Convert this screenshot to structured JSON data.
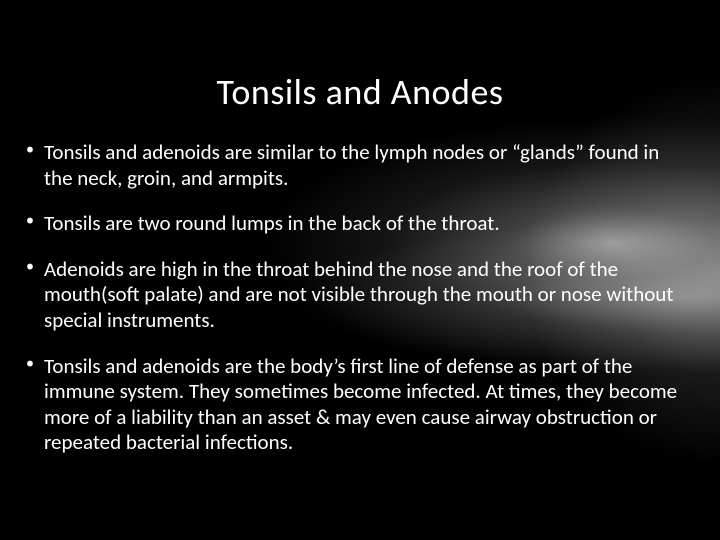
{
  "slide": {
    "title": "Tonsils and Anodes",
    "bullets": [
      "Tonsils and adenoids are similar to the lymph nodes or “glands” found in the neck, groin, and armpits.",
      "Tonsils are two round lumps in the back of the throat.",
      "Adenoids are high in the throat behind the nose and the roof of the mouth(soft palate) and are not visible through the mouth or nose without special instruments.",
      "Tonsils and adenoids are the body’s first line of defense as part of the immune system. They sometimes become infected. At times, they become more of a liability than an asset & may even cause airway obstruction or repeated bacterial infections."
    ],
    "colors": {
      "background": "#000000",
      "text": "#ffffff",
      "bullet": "#ffffff"
    },
    "typography": {
      "title_fontsize": 36,
      "body_fontsize": 21,
      "font_family": "Calibri"
    }
  }
}
